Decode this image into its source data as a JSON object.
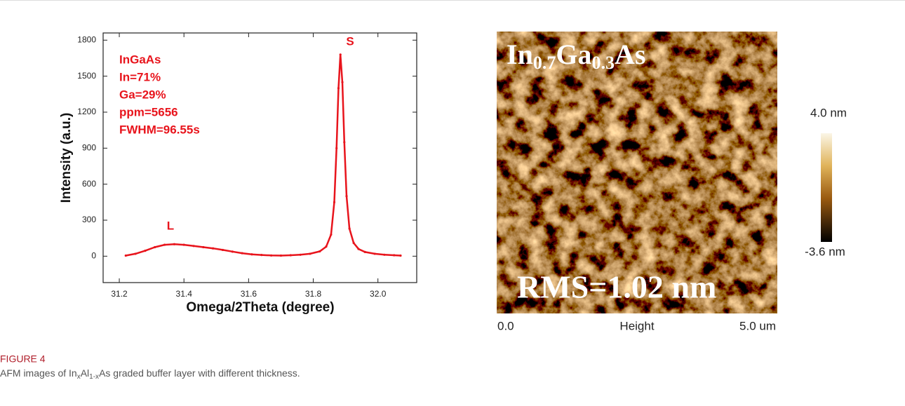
{
  "chart_data": {
    "type": "line",
    "ylabel": "Intensity (a.u.)",
    "xlabel": "Omega/2Theta (degree)",
    "annotations": [
      "InGaAs",
      "In=71%",
      "Ga=29%",
      "ppm=5656",
      "FWHM=96.55s"
    ],
    "peak_labels": [
      "L",
      "S"
    ],
    "color": "#e8141c",
    "x": [
      31.22,
      31.25,
      31.28,
      31.31,
      31.34,
      31.37,
      31.4,
      31.43,
      31.46,
      31.49,
      31.52,
      31.55,
      31.58,
      31.61,
      31.64,
      31.67,
      31.7,
      31.73,
      31.76,
      31.79,
      31.82,
      31.84,
      31.855,
      31.865,
      31.872,
      31.878,
      31.884,
      31.89,
      31.896,
      31.903,
      31.912,
      31.925,
      31.94,
      31.96,
      31.99,
      32.02,
      32.05,
      32.07
    ],
    "values": [
      5,
      20,
      45,
      75,
      95,
      100,
      95,
      85,
      75,
      65,
      52,
      38,
      25,
      15,
      10,
      6,
      5,
      8,
      12,
      20,
      40,
      80,
      180,
      450,
      900,
      1400,
      1680,
      1450,
      950,
      500,
      230,
      110,
      60,
      35,
      20,
      12,
      8,
      5
    ],
    "xlim": [
      31.15,
      32.12
    ],
    "xticks": [
      31.2,
      31.4,
      31.6,
      31.8,
      {
        "value": 32,
        "label": "32.0"
      }
    ],
    "ylim": [
      -220,
      1860
    ],
    "yticks": [
      0,
      300,
      600,
      900,
      1200,
      1500,
      1800
    ]
  },
  "afm": {
    "title_parts": [
      "In",
      "0.7",
      "Ga",
      "0.3",
      "As"
    ],
    "rms": "RMS=1.02 nm",
    "colorbar_max": "4.0 nm",
    "colorbar_min": "-3.6 nm",
    "scale_start": "0.0",
    "scale_label": "Height",
    "scale_end": "5.0 um"
  },
  "caption": {
    "label": "FIGURE 4",
    "text_parts": [
      "AFM images of In",
      "x",
      "Al",
      "1-x",
      "As graded buffer layer with different thickness."
    ]
  }
}
